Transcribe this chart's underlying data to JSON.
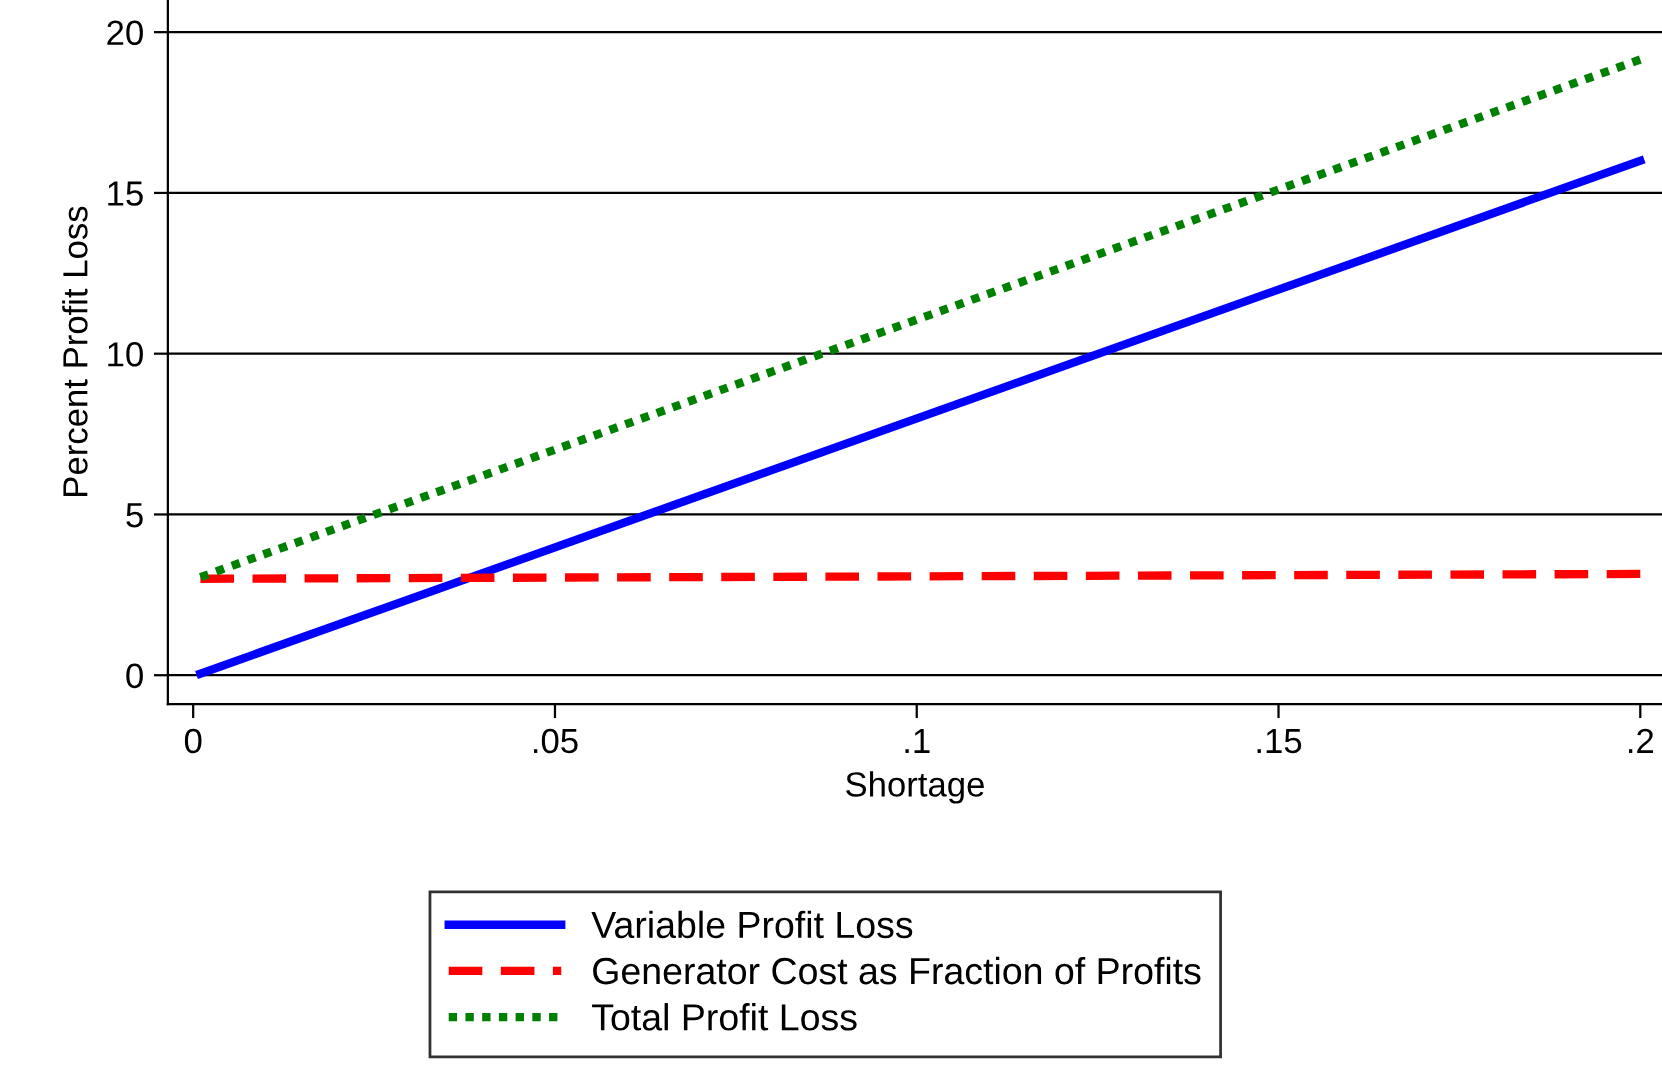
{
  "chart_data": {
    "type": "line",
    "xlabel": "Shortage",
    "ylabel": "Percent Profit Loss",
    "xlim": [
      -0.0035,
      0.203
    ],
    "ylim": [
      -0.9,
      21
    ],
    "xticks": [
      {
        "value": 0,
        "label": "0"
      },
      {
        "value": 0.05,
        "label": ".05"
      },
      {
        "value": 0.1,
        "label": ".1"
      },
      {
        "value": 0.15,
        "label": ".15"
      },
      {
        "value": 0.2,
        "label": ".2"
      }
    ],
    "yticks": [
      0,
      5,
      10,
      15,
      20
    ],
    "x": [
      0.001,
      0.2
    ],
    "series": [
      {
        "name": "Variable Profit Loss",
        "color": "#0000ff",
        "line_style": "solid",
        "values": [
          0.05,
          16
        ]
      },
      {
        "name": "Generator Cost as Fraction of Profits",
        "color": "#ff0000",
        "line_style": "dashed",
        "values": [
          3.0,
          3.15
        ]
      },
      {
        "name": "Total Profit Loss",
        "color": "#008000",
        "line_style": "dotted",
        "values": [
          3.05,
          19.15
        ]
      }
    ],
    "grid": "y",
    "legend": "bottom"
  }
}
